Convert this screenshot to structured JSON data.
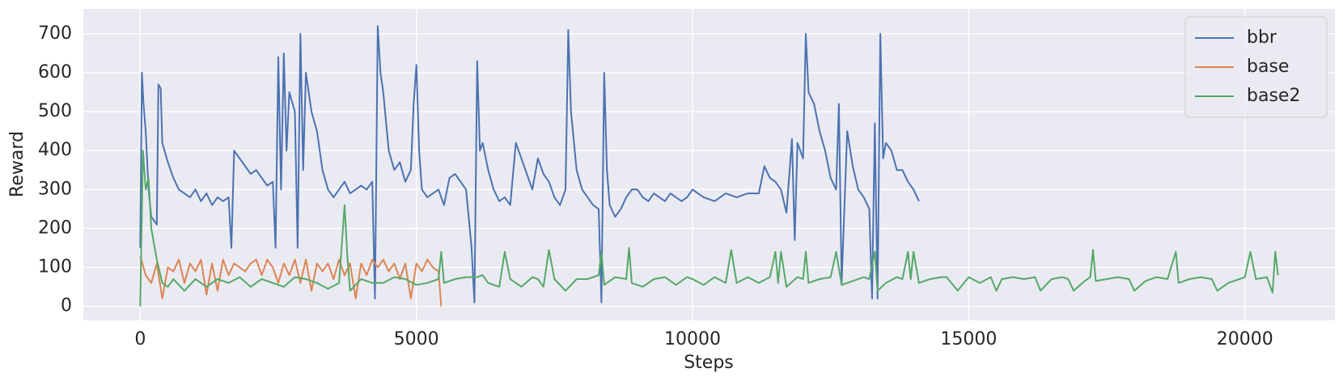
{
  "chart_data": {
    "type": "line",
    "x_label": "Steps",
    "y_label": "Reward",
    "xlim": [
      -1030,
      21630
    ],
    "ylim": [
      -36,
      764
    ],
    "xticks": [
      0,
      5000,
      10000,
      15000,
      20000
    ],
    "yticks": [
      0,
      100,
      200,
      300,
      400,
      500,
      600,
      700
    ],
    "grid": true,
    "legend": "upper right",
    "series": [
      {
        "name": "bbr",
        "color": "#4c72b0",
        "x": [
          0,
          30,
          60,
          100,
          150,
          200,
          250,
          300,
          330,
          370,
          400,
          500,
          600,
          700,
          800,
          900,
          1000,
          1100,
          1200,
          1300,
          1400,
          1500,
          1600,
          1650,
          1700,
          1800,
          1900,
          2000,
          2100,
          2200,
          2300,
          2400,
          2450,
          2500,
          2550,
          2600,
          2650,
          2700,
          2800,
          2850,
          2900,
          2950,
          3000,
          3100,
          3200,
          3300,
          3400,
          3500,
          3600,
          3700,
          3800,
          3900,
          4000,
          4100,
          4200,
          4250,
          4300,
          4350,
          4400,
          4500,
          4600,
          4700,
          4800,
          4900,
          4950,
          5000,
          5050,
          5100,
          5200,
          5300,
          5400,
          5500,
          5600,
          5700,
          5800,
          5900,
          6000,
          6050,
          6100,
          6150,
          6200,
          6300,
          6400,
          6500,
          6600,
          6700,
          6800,
          6900,
          7000,
          7100,
          7200,
          7300,
          7400,
          7500,
          7600,
          7700,
          7750,
          7800,
          7900,
          8000,
          8100,
          8200,
          8300,
          8350,
          8400,
          8450,
          8500,
          8600,
          8700,
          8800,
          8900,
          9000,
          9100,
          9200,
          9300,
          9400,
          9500,
          9600,
          9700,
          9800,
          9900,
          10000,
          10200,
          10400,
          10600,
          10800,
          11000,
          11200,
          11300,
          11400,
          11500,
          11600,
          11700,
          11800,
          11850,
          11900,
          12000,
          12050,
          12100,
          12200,
          12300,
          12400,
          12500,
          12600,
          12650,
          12700,
          12800,
          12900,
          13000,
          13100,
          13200,
          13250,
          13300,
          13350,
          13400,
          13450,
          13500,
          13600,
          13700,
          13800,
          13900,
          14000,
          14100
        ],
        "values": [
          150,
          600,
          520,
          450,
          300,
          230,
          220,
          210,
          570,
          560,
          420,
          370,
          330,
          300,
          290,
          280,
          300,
          270,
          290,
          260,
          280,
          270,
          280,
          150,
          400,
          380,
          360,
          340,
          350,
          330,
          310,
          320,
          150,
          640,
          300,
          650,
          400,
          550,
          500,
          150,
          700,
          350,
          600,
          500,
          450,
          350,
          300,
          280,
          300,
          320,
          290,
          300,
          310,
          300,
          320,
          20,
          720,
          600,
          550,
          400,
          350,
          370,
          320,
          350,
          520,
          620,
          400,
          300,
          280,
          290,
          300,
          260,
          330,
          340,
          320,
          300,
          150,
          10,
          630,
          400,
          420,
          350,
          300,
          270,
          280,
          260,
          420,
          380,
          340,
          300,
          380,
          340,
          320,
          280,
          260,
          300,
          710,
          500,
          350,
          300,
          280,
          260,
          250,
          10,
          600,
          350,
          260,
          230,
          250,
          280,
          300,
          300,
          280,
          270,
          290,
          280,
          270,
          290,
          280,
          270,
          280,
          300,
          280,
          270,
          290,
          280,
          290,
          290,
          360,
          330,
          320,
          300,
          240,
          430,
          170,
          420,
          380,
          700,
          550,
          520,
          450,
          400,
          330,
          300,
          520,
          60,
          450,
          360,
          300,
          280,
          250,
          20,
          470,
          20,
          700,
          380,
          420,
          400,
          350,
          350,
          320,
          300,
          270
        ]
      },
      {
        "name": "base",
        "color": "#dd8452",
        "x": [
          0,
          100,
          200,
          300,
          400,
          500,
          600,
          700,
          800,
          900,
          1000,
          1100,
          1200,
          1300,
          1400,
          1500,
          1600,
          1700,
          1800,
          1900,
          2000,
          2100,
          2200,
          2300,
          2400,
          2500,
          2600,
          2700,
          2800,
          2900,
          3000,
          3100,
          3200,
          3300,
          3400,
          3500,
          3600,
          3700,
          3800,
          3900,
          4000,
          4100,
          4200,
          4300,
          4400,
          4500,
          4600,
          4700,
          4800,
          4900,
          5000,
          5100,
          5200,
          5300,
          5400,
          5450
        ],
        "values": [
          130,
          80,
          60,
          110,
          20,
          100,
          90,
          120,
          60,
          110,
          90,
          120,
          30,
          110,
          40,
          120,
          80,
          110,
          100,
          90,
          110,
          120,
          80,
          120,
          100,
          60,
          110,
          80,
          120,
          60,
          120,
          40,
          110,
          90,
          110,
          70,
          120,
          80,
          110,
          20,
          110,
          80,
          120,
          100,
          120,
          90,
          110,
          70,
          110,
          20,
          110,
          90,
          120,
          100,
          90,
          0
        ]
      },
      {
        "name": "base2",
        "color": "#55a868",
        "x": [
          0,
          50,
          100,
          150,
          200,
          300,
          400,
          500,
          600,
          800,
          1000,
          1200,
          1400,
          1600,
          1800,
          2000,
          2200,
          2400,
          2600,
          2800,
          3000,
          3200,
          3400,
          3600,
          3700,
          3750,
          3800,
          4000,
          4200,
          4400,
          4600,
          4800,
          5000,
          5200,
          5400,
          5450,
          5500,
          5700,
          5900,
          6100,
          6200,
          6300,
          6500,
          6600,
          6700,
          6900,
          7100,
          7200,
          7300,
          7400,
          7500,
          7700,
          7900,
          8100,
          8300,
          8350,
          8400,
          8600,
          8800,
          8850,
          8900,
          9100,
          9300,
          9500,
          9700,
          9900,
          10000,
          10200,
          10400,
          10600,
          10700,
          10800,
          11000,
          11200,
          11400,
          11500,
          11550,
          11600,
          11700,
          11900,
          12000,
          12050,
          12100,
          12300,
          12500,
          12600,
          12700,
          12900,
          13100,
          13200,
          13300,
          13350,
          13500,
          13700,
          13800,
          13900,
          13950,
          14000,
          14100,
          14300,
          14500,
          14600,
          14800,
          15000,
          15200,
          15400,
          15500,
          15600,
          15800,
          16000,
          16200,
          16300,
          16500,
          16700,
          16800,
          16900,
          17100,
          17200,
          17250,
          17300,
          17500,
          17700,
          17900,
          18000,
          18200,
          18400,
          18600,
          18750,
          18800,
          19000,
          19200,
          19400,
          19500,
          19700,
          19900,
          20000,
          20100,
          20200,
          20400,
          20500,
          20550,
          20600
        ],
        "values": [
          0,
          400,
          300,
          330,
          200,
          120,
          60,
          50,
          70,
          40,
          70,
          50,
          70,
          60,
          75,
          50,
          70,
          60,
          50,
          75,
          70,
          60,
          45,
          60,
          260,
          130,
          40,
          70,
          60,
          60,
          75,
          70,
          55,
          60,
          70,
          140,
          60,
          70,
          75,
          75,
          80,
          60,
          50,
          140,
          70,
          50,
          75,
          70,
          50,
          145,
          70,
          40,
          70,
          70,
          80,
          140,
          55,
          75,
          70,
          150,
          60,
          50,
          70,
          75,
          55,
          75,
          70,
          55,
          75,
          60,
          145,
          60,
          75,
          60,
          75,
          140,
          60,
          140,
          50,
          75,
          70,
          140,
          60,
          70,
          75,
          140,
          55,
          65,
          75,
          70,
          140,
          40,
          60,
          75,
          70,
          140,
          70,
          140,
          60,
          70,
          75,
          75,
          40,
          75,
          60,
          75,
          40,
          70,
          75,
          70,
          75,
          40,
          70,
          75,
          70,
          40,
          65,
          75,
          145,
          65,
          70,
          75,
          70,
          40,
          65,
          75,
          70,
          140,
          60,
          70,
          75,
          70,
          40,
          60,
          70,
          75,
          140,
          70,
          75,
          35,
          140,
          80
        ]
      }
    ]
  }
}
